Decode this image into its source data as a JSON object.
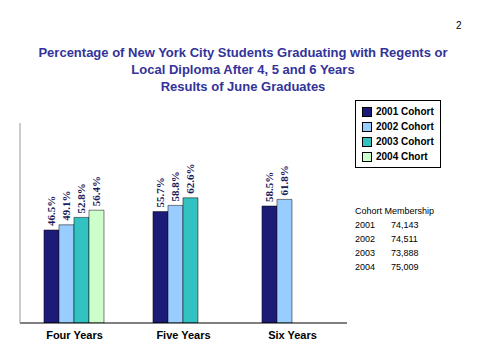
{
  "chart_data": {
    "type": "bar",
    "title": "Percentage of New York City Students Graduating with Regents or Local Diploma After 4, 5 and 6 Years",
    "subtitle": "Results of June Graduates",
    "categories": [
      "Four Years",
      "Five Years",
      "Six Years"
    ],
    "series": [
      {
        "name": "2001 Cohort",
        "color": "#1c1c78",
        "values": [
          46.5,
          55.7,
          58.5
        ],
        "value_labels": [
          "46.5%",
          "55.7%",
          "58.5%"
        ]
      },
      {
        "name": "2002 Cohort",
        "color": "#99ccff",
        "values": [
          49.1,
          58.8,
          61.8
        ],
        "value_labels": [
          "49.1%",
          "58.8%",
          "61.8%"
        ]
      },
      {
        "name": "2003 Cohort",
        "color": "#33c2c2",
        "values": [
          52.8,
          62.6,
          null
        ],
        "value_labels": [
          "52.8%",
          "62.6%",
          null
        ]
      },
      {
        "name": "2004 Chort",
        "color": "#ccffcc",
        "values": [
          56.4,
          null,
          null
        ],
        "value_labels": [
          "56.4%",
          null,
          null
        ]
      }
    ],
    "ylim": [
      0,
      100
    ],
    "data_labels": true,
    "legend": "right",
    "tick_labels": "x",
    "annotations": [
      {
        "text": "Cohort Membership",
        "rows": [
          [
            "2001",
            "74,143"
          ],
          [
            "2002",
            "74,511"
          ],
          [
            "2003",
            "73,888"
          ],
          [
            "2004",
            "75,009"
          ]
        ]
      },
      {
        "text": "2"
      }
    ]
  }
}
